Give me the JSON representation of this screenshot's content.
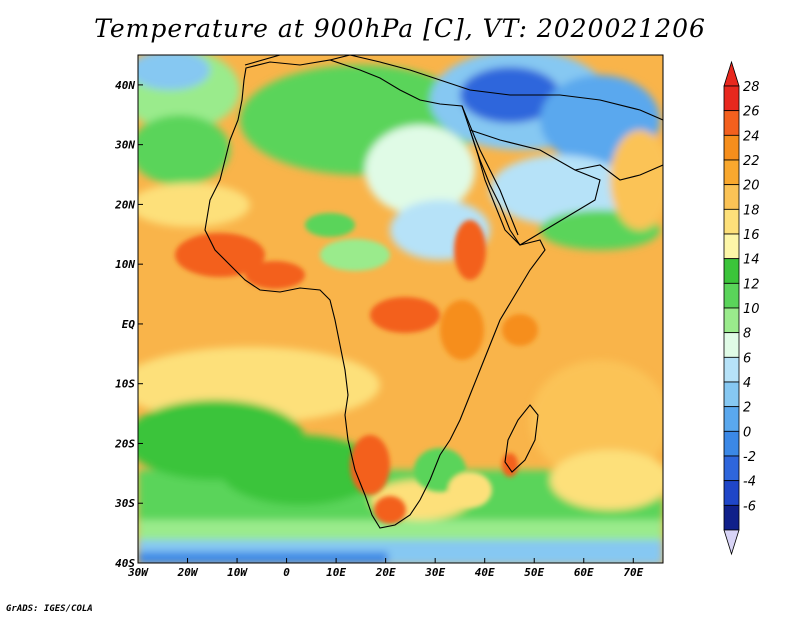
{
  "title": "Temperature at 900hPa [C], VT: 2020021206",
  "credit": "GrADS: IGES/COLA",
  "map": {
    "lon_range": [
      -30,
      76
    ],
    "lat_range": [
      -40,
      45
    ],
    "lon_ticks": [
      {
        "lon": -30,
        "label": "30W"
      },
      {
        "lon": -20,
        "label": "20W"
      },
      {
        "lon": -10,
        "label": "10W"
      },
      {
        "lon": 0,
        "label": "0"
      },
      {
        "lon": 10,
        "label": "10E"
      },
      {
        "lon": 20,
        "label": "20E"
      },
      {
        "lon": 30,
        "label": "30E"
      },
      {
        "lon": 40,
        "label": "40E"
      },
      {
        "lon": 50,
        "label": "50E"
      },
      {
        "lon": 60,
        "label": "60E"
      },
      {
        "lon": 70,
        "label": "70E"
      }
    ],
    "lat_ticks": [
      {
        "lat": 40,
        "label": "40N"
      },
      {
        "lat": 30,
        "label": "30N"
      },
      {
        "lat": 20,
        "label": "20N"
      },
      {
        "lat": 10,
        "label": "10N"
      },
      {
        "lat": 0,
        "label": "EQ"
      },
      {
        "lat": -10,
        "label": "10S"
      },
      {
        "lat": -20,
        "label": "20S"
      },
      {
        "lat": -30,
        "label": "30S"
      },
      {
        "lat": -40,
        "label": "40S"
      }
    ]
  },
  "colorbar": {
    "levels": [
      {
        "label": "28",
        "color": "#e8281e"
      },
      {
        "label": "26",
        "color": "#f3601e"
      },
      {
        "label": "24",
        "color": "#f68e1c"
      },
      {
        "label": "22",
        "color": "#f9a82e"
      },
      {
        "label": "20",
        "color": "#fbc356"
      },
      {
        "label": "18",
        "color": "#fde07a"
      },
      {
        "label": "16",
        "color": "#fdf6a8"
      },
      {
        "label": "14",
        "color": "#3bc43a"
      },
      {
        "label": "12",
        "color": "#5ad45a"
      },
      {
        "label": "10",
        "color": "#9aeb8c"
      },
      {
        "label": "8",
        "color": "#e0fbe6"
      },
      {
        "label": "6",
        "color": "#b6e2f8"
      },
      {
        "label": "4",
        "color": "#86c8f2"
      },
      {
        "label": "2",
        "color": "#5aa8ee"
      },
      {
        "label": "0",
        "color": "#3b88e6"
      },
      {
        "label": "-2",
        "color": "#2e66dc"
      },
      {
        "label": "-4",
        "color": "#1f46c8"
      },
      {
        "label": "-6",
        "color": "#10208a"
      }
    ],
    "top_arrow_color": "#e8281e",
    "bottom_arrow_color": "#d8d4f6"
  },
  "colors": {
    "ocean_base": "#f9b44a",
    "land": "#f39a2c",
    "coast": "#000000"
  }
}
